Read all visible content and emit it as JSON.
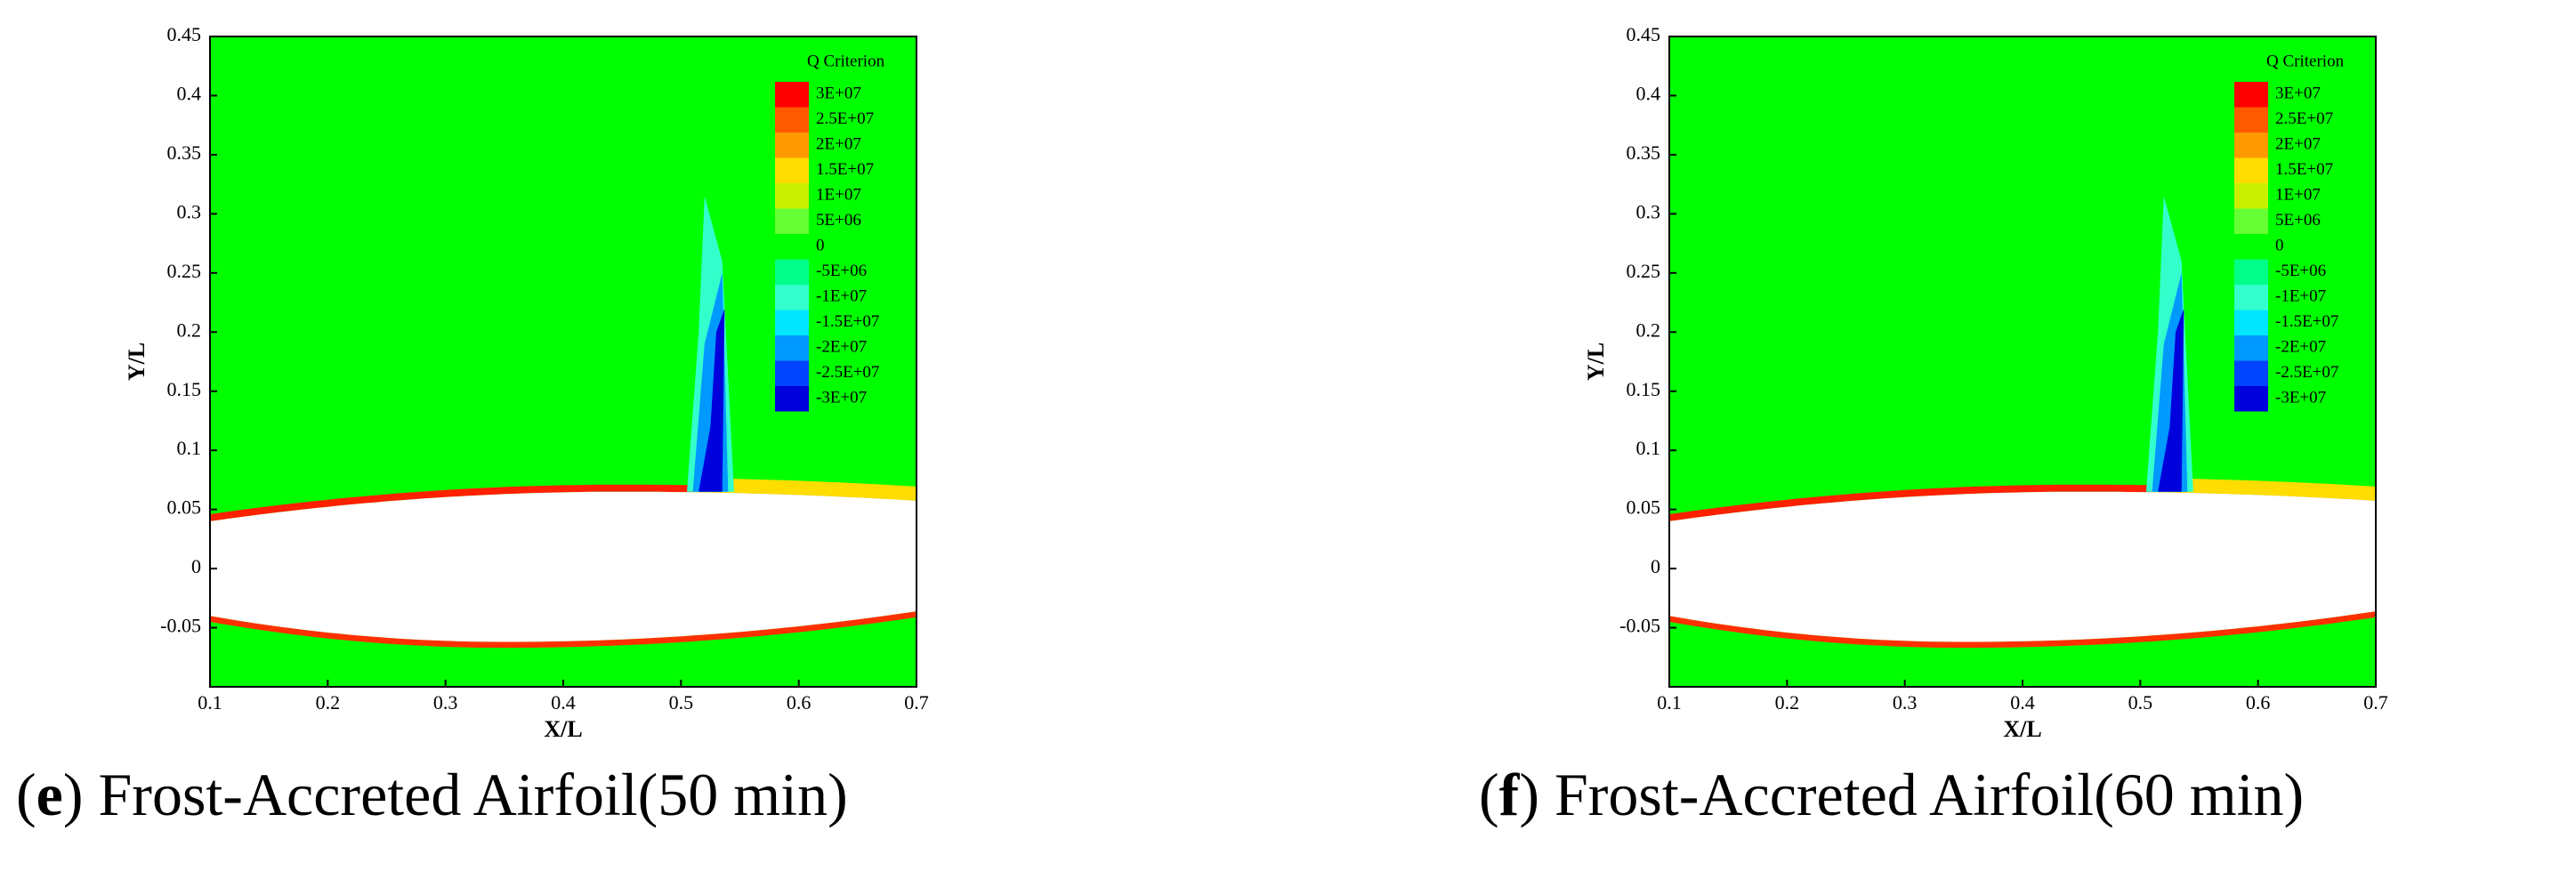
{
  "chart_data": [
    {
      "type": "contour",
      "caption": [
        "(",
        "e",
        ") Frost-Accreted Airfoil(50 min)"
      ],
      "xlabel": "X/L",
      "ylabel": "Y/L",
      "xlim": [
        0.1,
        0.7
      ],
      "xticks": [
        0.1,
        0.2,
        0.3,
        0.4,
        0.5,
        0.6,
        0.7
      ],
      "ylim": [
        -0.1,
        0.45
      ],
      "yticks": [
        0.45,
        0.4,
        0.35,
        0.3,
        0.25,
        0.2,
        0.15,
        0.1,
        0.05,
        0,
        -0.05
      ],
      "legend_title": "Q Criterion",
      "levels": [
        {
          "value": 30000000,
          "label": "3E+07"
        },
        {
          "value": 25000000,
          "label": "2.5E+07"
        },
        {
          "value": 20000000,
          "label": "2E+07"
        },
        {
          "value": 15000000,
          "label": "1.5E+07"
        },
        {
          "value": 10000000,
          "label": "1E+07"
        },
        {
          "value": 5000000,
          "label": "5E+06"
        },
        0,
        {
          "value": -5000000,
          "label": "-5E+06"
        },
        {
          "value": -10000000,
          "label": "-1E+07"
        },
        {
          "value": -15000000,
          "label": "-1.5E+07"
        },
        {
          "value": -20000000,
          "label": "-2E+07"
        },
        {
          "value": -25000000,
          "label": "-2.5E+07"
        },
        {
          "value": -30000000,
          "label": "-3E+07"
        }
      ],
      "colors": [
        "#ff0000",
        "#ff5a00",
        "#ff9900",
        "#ffdd00",
        "#c8f000",
        "#66ff33",
        "#00ff00",
        "#00ff88",
        "#33ffcc",
        "#00e6ff",
        "#0099ff",
        "#0044ff",
        "#0000dd"
      ]
    },
    {
      "type": "contour",
      "caption": [
        "(",
        "f",
        ") Frost-Accreted Airfoil(60 min)"
      ],
      "xlabel": "X/L",
      "ylabel": "Y/L",
      "xlim": [
        0.1,
        0.7
      ],
      "xticks": [
        0.1,
        0.2,
        0.3,
        0.4,
        0.5,
        0.6,
        0.7
      ],
      "ylim": [
        -0.1,
        0.45
      ],
      "yticks": [
        0.45,
        0.4,
        0.35,
        0.3,
        0.25,
        0.2,
        0.15,
        0.1,
        0.05,
        0,
        -0.05
      ],
      "legend_title": "Q Criterion",
      "levels": [
        {
          "value": 30000000,
          "label": "3E+07"
        },
        {
          "value": 25000000,
          "label": "2.5E+07"
        },
        {
          "value": 20000000,
          "label": "2E+07"
        },
        {
          "value": 15000000,
          "label": "1.5E+07"
        },
        {
          "value": 10000000,
          "label": "1E+07"
        },
        {
          "value": 5000000,
          "label": "5E+06"
        },
        0,
        {
          "value": -5000000,
          "label": "-5E+06"
        },
        {
          "value": -10000000,
          "label": "-1E+07"
        },
        {
          "value": -15000000,
          "label": "-1.5E+07"
        },
        {
          "value": -20000000,
          "label": "-2E+07"
        },
        {
          "value": -25000000,
          "label": "-2.5E+07"
        },
        {
          "value": -30000000,
          "label": "-3E+07"
        }
      ],
      "colors": [
        "#ff0000",
        "#ff5a00",
        "#ff9900",
        "#ffdd00",
        "#c8f000",
        "#66ff33",
        "#00ff00",
        "#00ff88",
        "#33ffcc",
        "#00e6ff",
        "#0099ff",
        "#0044ff",
        "#0000dd"
      ]
    }
  ]
}
